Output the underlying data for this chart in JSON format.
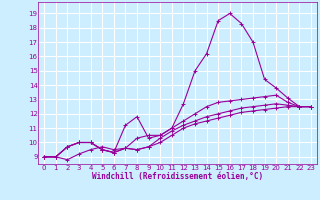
{
  "xlabel": "Windchill (Refroidissement éolien,°C)",
  "bg_color": "#cceeff",
  "line_color": "#990099",
  "grid_color": "#ffffff",
  "xlim": [
    -0.5,
    23.5
  ],
  "ylim": [
    8.5,
    19.8
  ],
  "xticks": [
    0,
    1,
    2,
    3,
    4,
    5,
    6,
    7,
    8,
    9,
    10,
    11,
    12,
    13,
    14,
    15,
    16,
    17,
    18,
    19,
    20,
    21,
    22,
    23
  ],
  "yticks": [
    9,
    10,
    11,
    12,
    13,
    14,
    15,
    16,
    17,
    18,
    19
  ],
  "lines": [
    {
      "x": [
        0,
        1,
        2,
        3,
        4,
        5,
        6,
        7,
        8,
        9,
        10,
        11,
        12,
        13,
        14,
        15,
        16,
        17,
        18,
        19,
        20,
        21,
        22,
        23
      ],
      "y": [
        9.0,
        9.0,
        9.7,
        10.0,
        10.0,
        9.5,
        9.3,
        11.2,
        11.8,
        10.3,
        10.5,
        11.0,
        12.7,
        15.0,
        16.2,
        18.5,
        19.0,
        18.3,
        17.0,
        14.4,
        13.8,
        13.1,
        12.5,
        12.5
      ]
    },
    {
      "x": [
        0,
        1,
        2,
        3,
        4,
        5,
        6,
        7,
        8,
        9,
        10,
        11,
        12,
        13,
        14,
        15,
        16,
        17,
        18,
        19,
        20,
        21,
        22,
        23
      ],
      "y": [
        9.0,
        9.0,
        9.7,
        10.0,
        10.0,
        9.5,
        9.3,
        9.6,
        10.3,
        10.5,
        10.5,
        11.0,
        11.5,
        12.0,
        12.5,
        12.8,
        12.9,
        13.0,
        13.1,
        13.2,
        13.3,
        12.8,
        12.5,
        12.5
      ]
    },
    {
      "x": [
        0,
        1,
        2,
        3,
        4,
        5,
        6,
        7,
        8,
        9,
        10,
        11,
        12,
        13,
        14,
        15,
        16,
        17,
        18,
        19,
        20,
        21,
        22,
        23
      ],
      "y": [
        9.0,
        9.0,
        9.7,
        10.0,
        10.0,
        9.5,
        9.3,
        9.6,
        9.5,
        9.7,
        10.3,
        10.8,
        11.2,
        11.5,
        11.8,
        12.0,
        12.2,
        12.4,
        12.5,
        12.6,
        12.7,
        12.6,
        12.5,
        12.5
      ]
    },
    {
      "x": [
        0,
        1,
        2,
        3,
        4,
        5,
        6,
        7,
        8,
        9,
        10,
        11,
        12,
        13,
        14,
        15,
        16,
        17,
        18,
        19,
        20,
        21,
        22,
        23
      ],
      "y": [
        9.0,
        9.0,
        8.8,
        9.2,
        9.5,
        9.7,
        9.5,
        9.6,
        9.5,
        9.7,
        10.0,
        10.5,
        11.0,
        11.3,
        11.5,
        11.7,
        11.9,
        12.1,
        12.2,
        12.3,
        12.4,
        12.5,
        12.5,
        12.5
      ]
    }
  ]
}
